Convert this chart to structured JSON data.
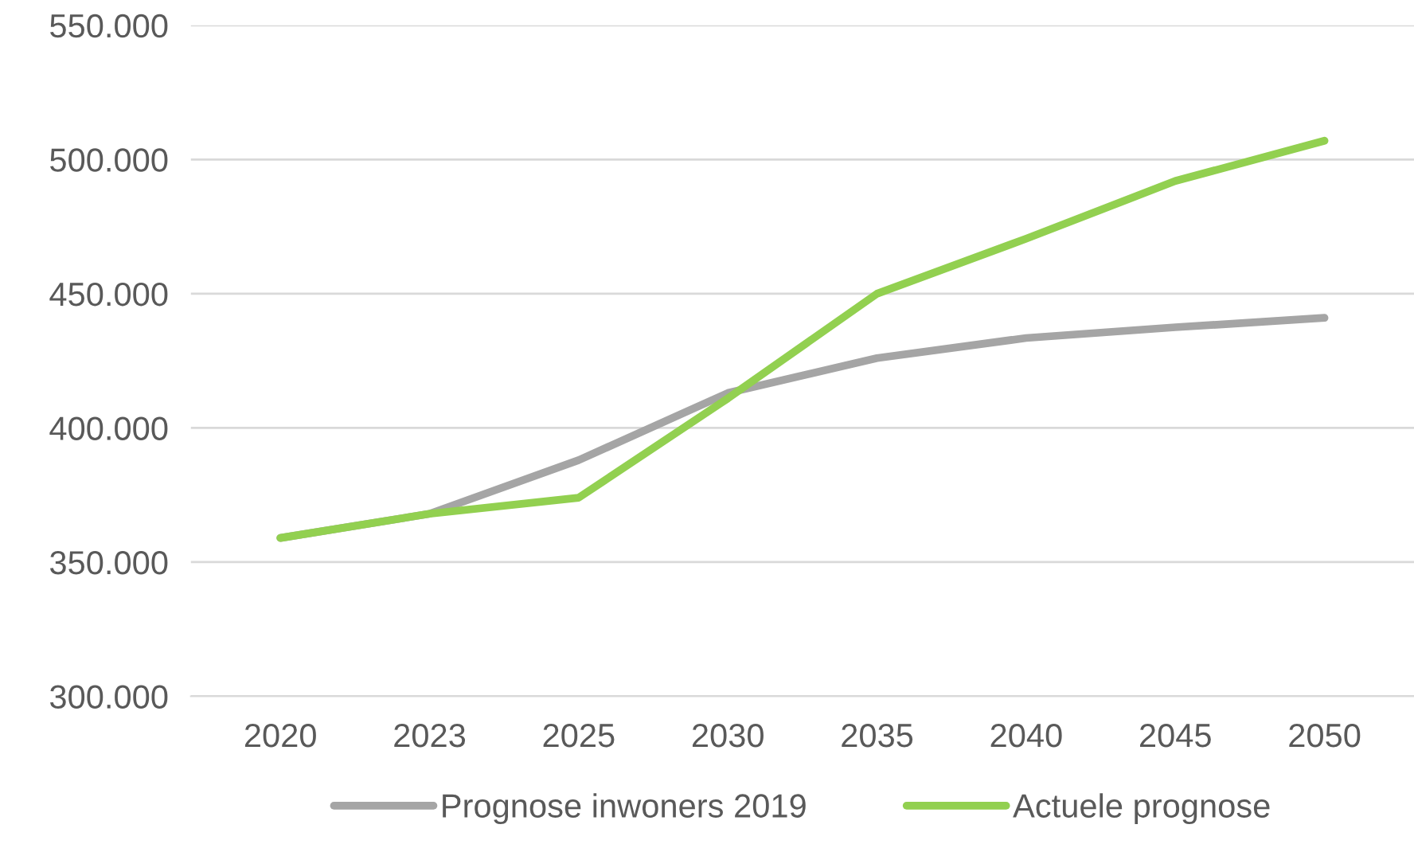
{
  "chart_data": {
    "type": "line",
    "categories": [
      "2020",
      "2023",
      "2025",
      "2030",
      "2035",
      "2040",
      "2045",
      "2050"
    ],
    "series": [
      {
        "name": "Prognose inwoners 2019",
        "color": "#a5a5a5",
        "values": [
          359000,
          368000,
          388000,
          413000,
          426000,
          433500,
          437500,
          441000
        ]
      },
      {
        "name": "Actuele prognose",
        "color": "#92d050",
        "values": [
          359000,
          368000,
          374000,
          411000,
          450000,
          470500,
          492000,
          507000
        ]
      }
    ],
    "ylim": [
      300000,
      550000
    ],
    "yticks": [
      {
        "value": 300000,
        "label": "300.000"
      },
      {
        "value": 350000,
        "label": "350.000"
      },
      {
        "value": 400000,
        "label": "400.000"
      },
      {
        "value": 450000,
        "label": "450.000"
      },
      {
        "value": 500000,
        "label": "500.000"
      },
      {
        "value": 550000,
        "label": "550.000"
      }
    ],
    "grid": "y",
    "legend": "bottom",
    "marker": "none",
    "line_style": "solid"
  }
}
